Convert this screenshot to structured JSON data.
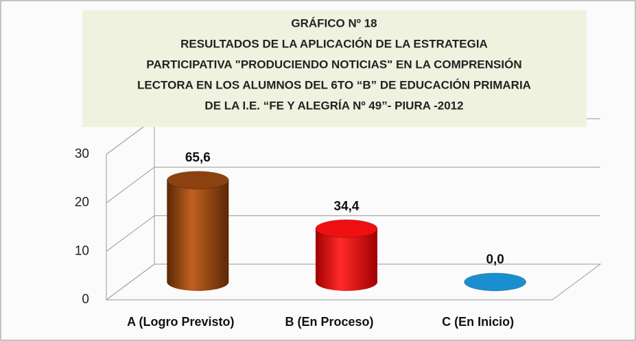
{
  "chart_data": {
    "type": "bar3d",
    "title_lines": [
      "GRÁFICO Nº 18",
      "RESULTADOS DE LA APLICACIÓN DE LA ESTRATEGIA",
      "PARTICIPATIVA \"PRODUCIENDO NOTICIAS\" EN LA COMPRENSIÓN",
      "LECTORA  EN LOS ALUMNOS  DEL 6TO “B” DE EDUCACIÓN PRIMARIA",
      "DE  LA  I.E. “FE Y ALEGRÍA Nº 49”- PIURA -2012"
    ],
    "categories": [
      "A (Logro Previsto)",
      "B (En Proceso)",
      "C (En Inicio)"
    ],
    "values": [
      21,
      11,
      0
    ],
    "value_labels": [
      "65,6",
      "34,4",
      "0,0"
    ],
    "colors": [
      "#8b4210",
      "#ee1010",
      "#1a8fcf"
    ],
    "ylim": [
      0,
      30
    ],
    "yticks": [
      0,
      10,
      20,
      30
    ],
    "grid": true
  }
}
